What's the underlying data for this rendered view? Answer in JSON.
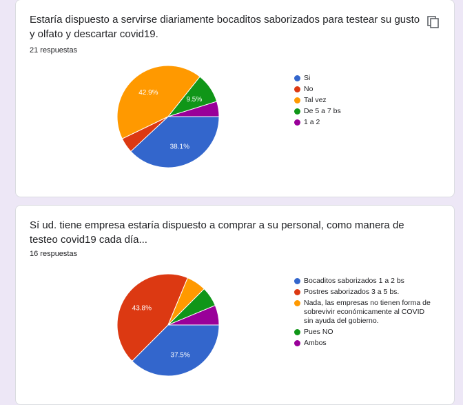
{
  "cards": [
    {
      "title": "Estaría dispuesto a servirse diariamente bocaditos saborizados para testear su gusto y olfato y descartar covid19.",
      "responses": "21 respuestas",
      "chart_data": {
        "type": "pie",
        "categories": [
          "Si",
          "No",
          "Tal vez",
          "De 5 a 7 bs",
          "1 a 2"
        ],
        "values": [
          38.1,
          4.8,
          42.9,
          9.5,
          4.8
        ],
        "data_labels": [
          "38.1%",
          "",
          "42.9%",
          "9.5%",
          ""
        ],
        "colors": [
          "#3366cc",
          "#dc3912",
          "#ff9900",
          "#109618",
          "#990099"
        ],
        "legend_position": "right"
      }
    },
    {
      "title": "Sí ud. tiene empresa estaría dispuesto a comprar a su personal, como manera de testeo covid19 cada día...",
      "responses": "16 respuestas",
      "chart_data": {
        "type": "pie",
        "categories": [
          "Bocaditos saborizados 1 a 2 bs",
          "Postres saborizados 3 a 5 bs.",
          "Nada, las empresas no tienen forma de sobrevivir económicamente al COVID sin ayuda del gobierno.",
          "Pues NO",
          "Ambos"
        ],
        "values": [
          37.5,
          43.8,
          6.25,
          6.25,
          6.25
        ],
        "data_labels": [
          "37.5%",
          "43.8%",
          "",
          "",
          ""
        ],
        "colors": [
          "#3366cc",
          "#dc3912",
          "#ff9900",
          "#109618",
          "#990099"
        ],
        "legend_position": "right"
      }
    }
  ],
  "icons": {
    "copy": "copy-icon"
  }
}
